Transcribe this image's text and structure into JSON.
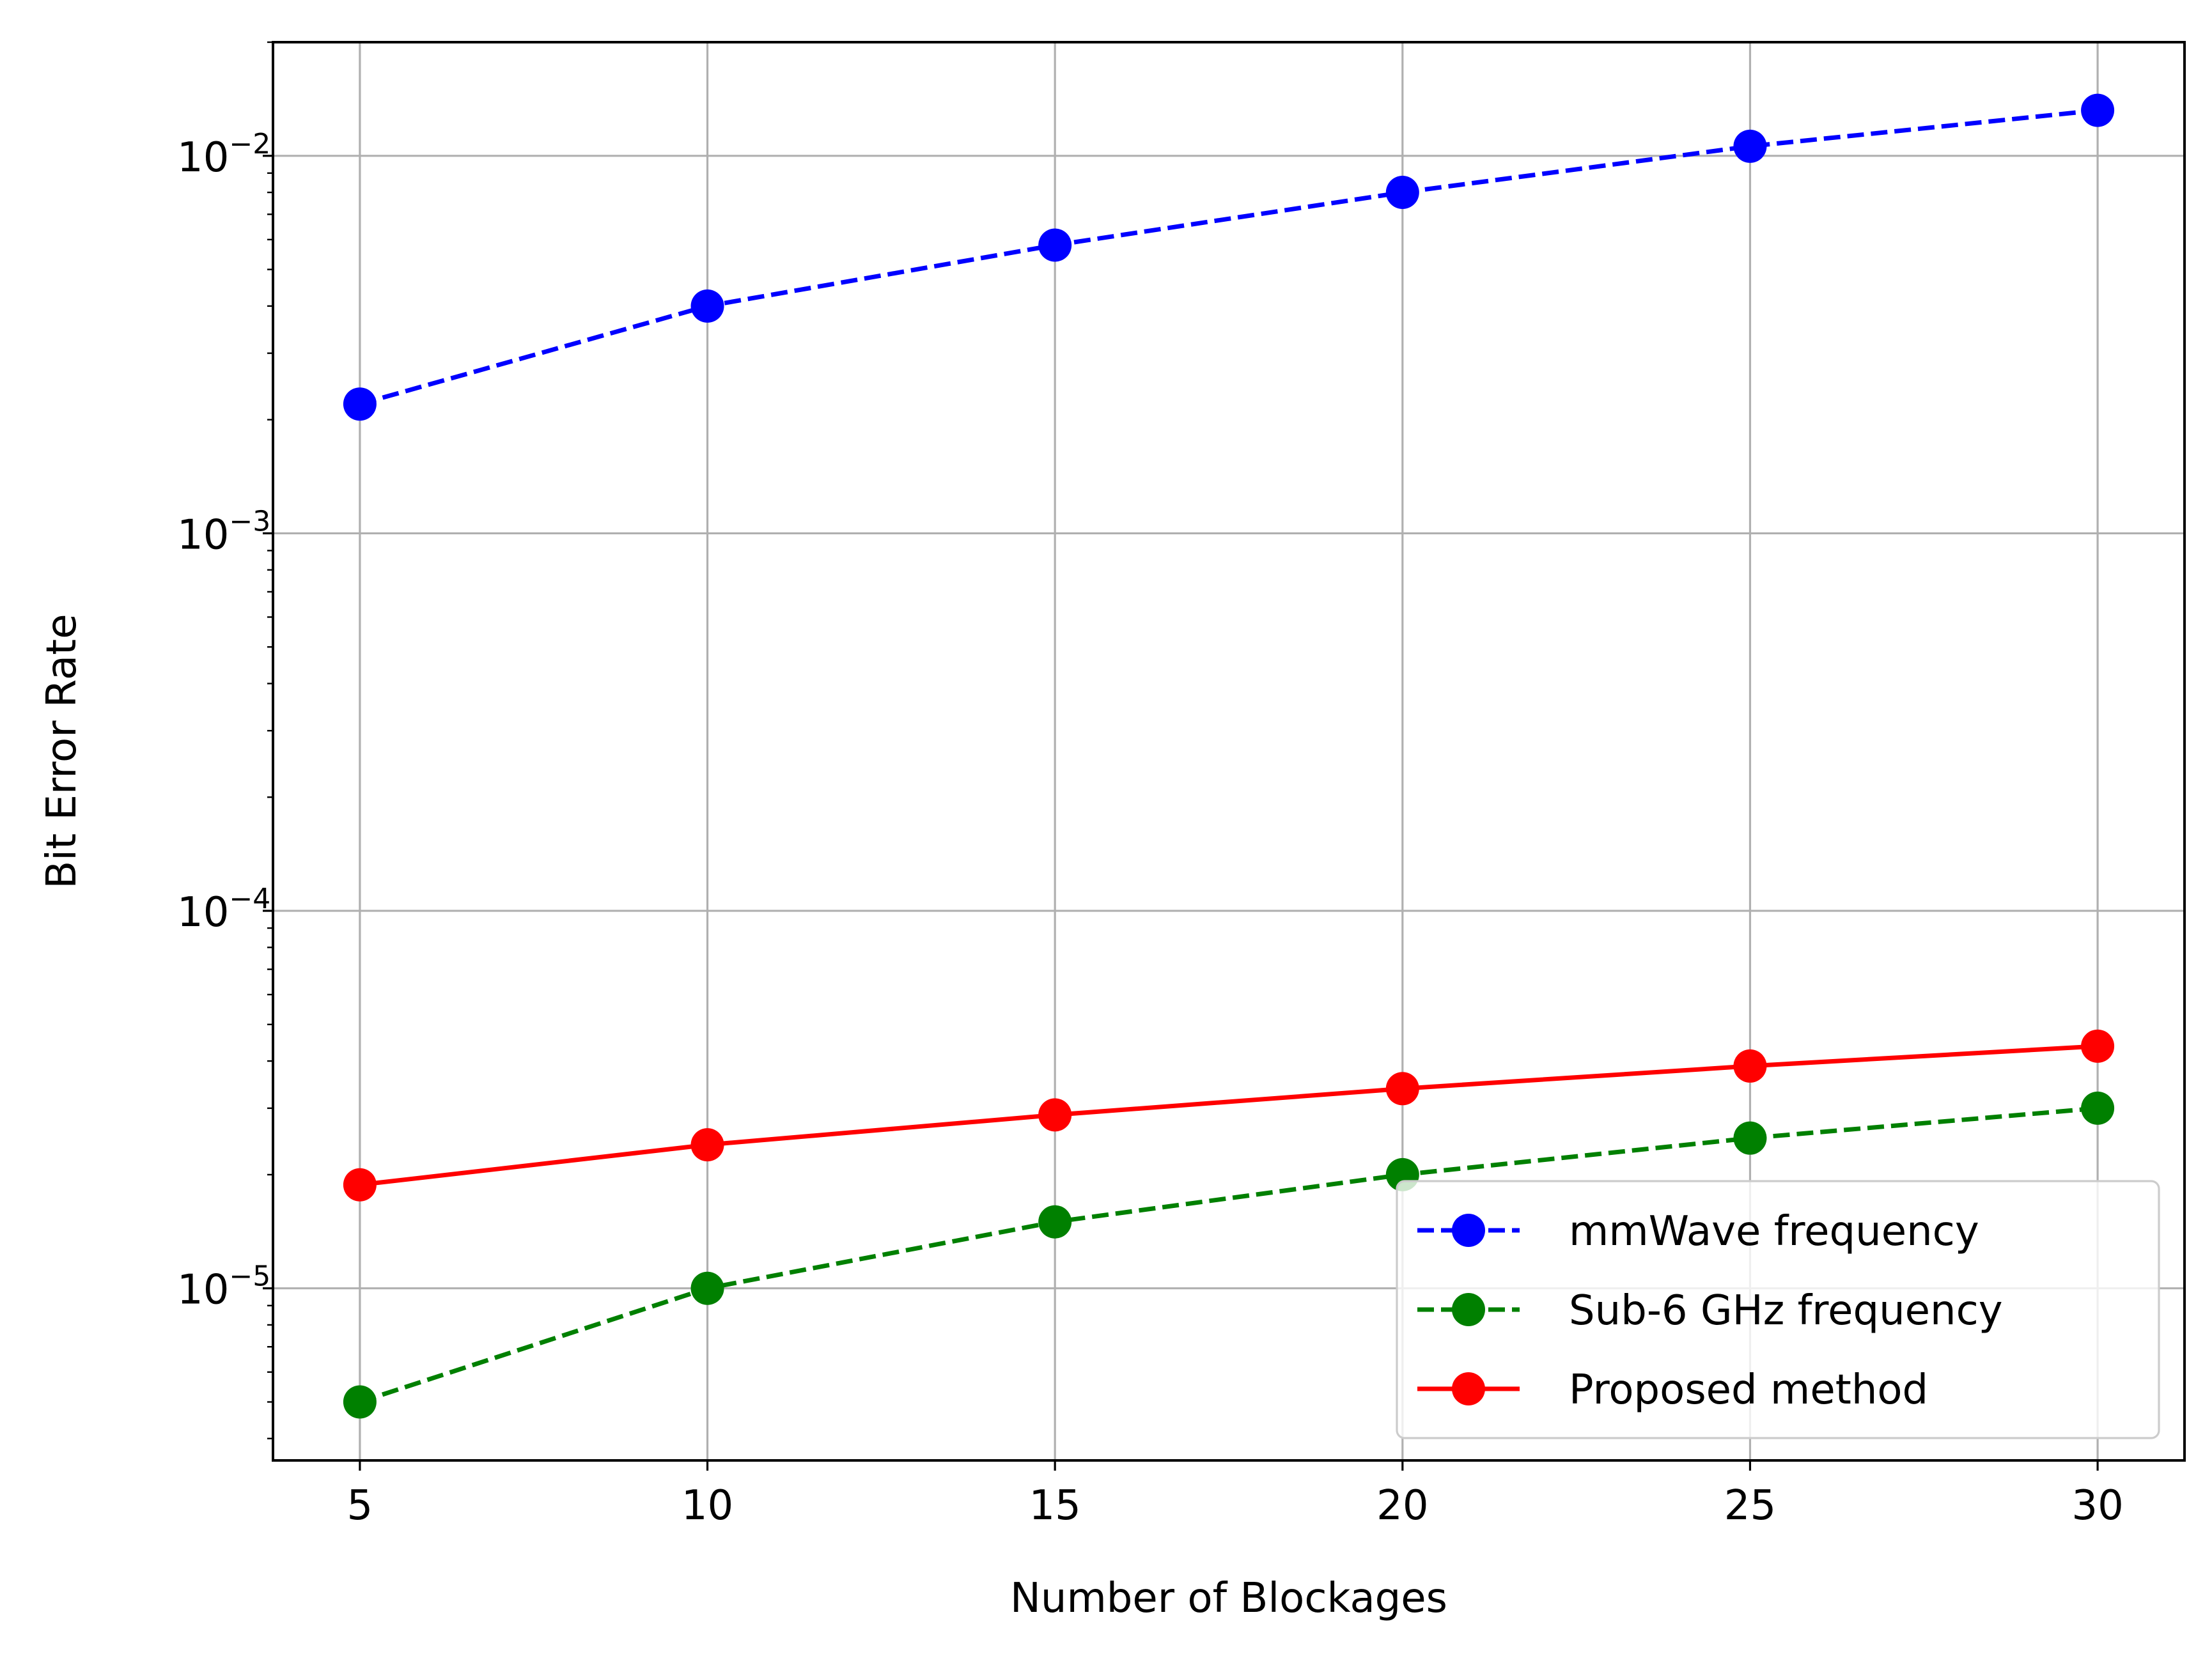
{
  "chart_data": {
    "type": "line",
    "title": "",
    "xlabel": "Number of Blockages",
    "ylabel": "Bit Error Rate",
    "x": [
      5,
      10,
      15,
      20,
      25,
      30
    ],
    "xlim": [
      3.75,
      31.25
    ],
    "xticks": [
      5,
      10,
      15,
      20,
      25,
      30
    ],
    "yscale": "log",
    "ylim": [
      3.5e-06,
      0.02
    ],
    "yticks": [
      {
        "value": 1e-05,
        "base": "10",
        "exp": "−5"
      },
      {
        "value": 0.0001,
        "base": "10",
        "exp": "−4"
      },
      {
        "value": 0.001,
        "base": "10",
        "exp": "−3"
      },
      {
        "value": 0.01,
        "base": "10",
        "exp": "−2"
      }
    ],
    "grid": true,
    "legend_position": "lower-right",
    "series": [
      {
        "name": "mmWave frequency",
        "color": "#0000ff",
        "linestyle": "dashed",
        "marker": "circle",
        "values": [
          0.0022,
          0.004,
          0.0058,
          0.008,
          0.0106,
          0.0132
        ]
      },
      {
        "name": "Sub-6 GHz frequency",
        "color": "#008000",
        "linestyle": "dashed",
        "marker": "circle",
        "values": [
          5e-06,
          1e-05,
          1.5e-05,
          2e-05,
          2.5e-05,
          3e-05
        ]
      },
      {
        "name": "Proposed method",
        "color": "#ff0000",
        "linestyle": "solid",
        "marker": "circle",
        "values": [
          1.88e-05,
          2.4e-05,
          2.88e-05,
          3.38e-05,
          3.88e-05,
          4.38e-05
        ]
      }
    ]
  }
}
